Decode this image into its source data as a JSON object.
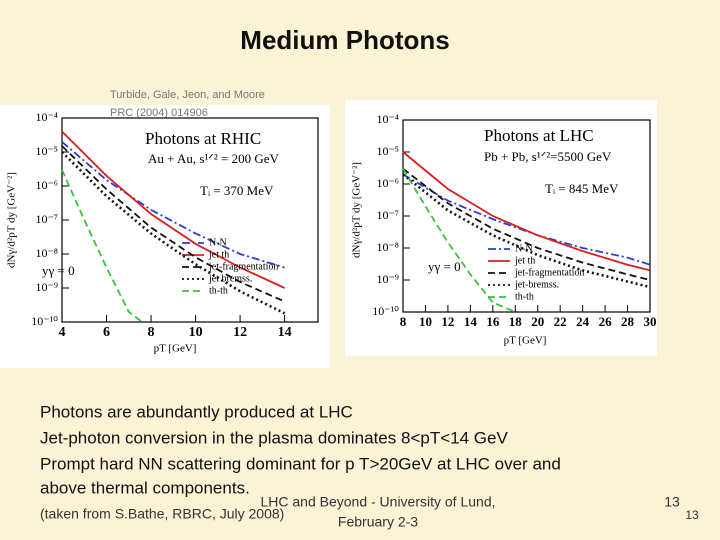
{
  "title": "Medium Photons",
  "citation": [
    "Turbide, Gale, Jeon, and Moore",
    "PRC (2004) 014906"
  ],
  "chart_data": [
    {
      "type": "line",
      "title": "Photons at RHIC",
      "annotations": [
        "Au + Au, s¹ᐟ² = 200 GeV",
        "Tᵢ = 370 MeV",
        "yγ = 0"
      ],
      "x_label": "pT [GeV]",
      "y_label": "dNγ/d²pT dy [GeV⁻²]",
      "xlim": [
        4,
        15.5
      ],
      "xticks": [
        4,
        6,
        8,
        10,
        12,
        14
      ],
      "ylim": [
        1e-10,
        0.0001
      ],
      "log_y": true,
      "yticks": [
        {
          "value": 0.0001,
          "label": "10⁻⁴"
        },
        {
          "value": 1e-05,
          "label": "10⁻⁵"
        },
        {
          "value": 1e-06,
          "label": "10⁻⁶"
        },
        {
          "value": 1e-07,
          "label": "10⁻⁷"
        },
        {
          "value": 1e-08,
          "label": "10⁻⁸"
        },
        {
          "value": 1e-09,
          "label": "10⁻⁹"
        },
        {
          "value": 1e-10,
          "label": "10⁻¹⁰"
        }
      ],
      "legend": "lower right",
      "series": [
        {
          "name": "N-N",
          "color": "#2a3fd0",
          "dash": "dashdot",
          "x": [
            4,
            6,
            8,
            10,
            12,
            14
          ],
          "values": [
            2e-05,
            1.5e-06,
            2e-07,
            4e-08,
            1e-08,
            4e-09
          ]
        },
        {
          "name": "jet th",
          "color": "#d62020",
          "dash": "solid",
          "x": [
            4,
            6,
            8,
            10,
            12,
            14
          ],
          "values": [
            4e-05,
            2e-06,
            1.5e-07,
            2e-08,
            4e-09,
            1e-09
          ]
        },
        {
          "name": "jet-fragmentation",
          "color": "#111111",
          "dash": "dashed",
          "x": [
            4,
            6,
            8,
            10,
            12,
            14
          ],
          "values": [
            1.5e-05,
            8e-07,
            6e-08,
            8e-09,
            1.5e-09,
            4e-10
          ]
        },
        {
          "name": "jet bremss.",
          "color": "#111111",
          "dash": "dotted",
          "x": [
            4,
            6,
            8,
            10,
            12,
            14
          ],
          "values": [
            1e-05,
            5e-07,
            4e-08,
            5e-09,
            8e-10,
            1.8e-10
          ]
        },
        {
          "name": "th-th",
          "color": "#3cc040",
          "dash": "dashed",
          "x": [
            4,
            5,
            6,
            7,
            7.6
          ],
          "values": [
            3e-06,
            1e-07,
            4e-09,
            2e-10,
            1e-10
          ]
        }
      ]
    },
    {
      "type": "line",
      "title": "Photons at LHC",
      "annotations": [
        "Pb + Pb, s¹ᐟ²=5500 GeV",
        "Tᵢ = 845 MeV",
        "yγ = 0"
      ],
      "x_label": "pT [GeV]",
      "y_label": "dNγ/d²pT dy [GeV⁻²]",
      "xlim": [
        8,
        30
      ],
      "xticks": [
        8,
        10,
        12,
        14,
        16,
        18,
        20,
        22,
        24,
        26,
        28,
        30
      ],
      "ylim": [
        1e-10,
        0.0001
      ],
      "log_y": true,
      "yticks": [
        {
          "value": 0.0001,
          "label": "10⁻⁴"
        },
        {
          "value": 1e-05,
          "label": "10⁻⁵"
        },
        {
          "value": 1e-06,
          "label": "10⁻⁶"
        },
        {
          "value": 1e-07,
          "label": "10⁻⁷"
        },
        {
          "value": 1e-08,
          "label": "10⁻⁸"
        },
        {
          "value": 1e-09,
          "label": "10⁻⁹"
        },
        {
          "value": 1e-10,
          "label": "10⁻¹⁰"
        }
      ],
      "legend": "lower right",
      "series": [
        {
          "name": "N-N",
          "color": "#2a3fd0",
          "dash": "dashdot",
          "x": [
            8,
            12,
            16,
            20,
            24,
            28,
            30
          ],
          "values": [
            2e-06,
            3e-07,
            8e-08,
            2.5e-08,
            1e-08,
            5e-09,
            3e-09
          ]
        },
        {
          "name": "jet th",
          "color": "#d62020",
          "dash": "solid",
          "x": [
            8,
            12,
            16,
            20,
            24,
            28,
            30
          ],
          "values": [
            1e-05,
            7e-07,
            1e-07,
            2.5e-08,
            8e-09,
            3e-09,
            2e-09
          ]
        },
        {
          "name": "jet-fragmentation",
          "color": "#111111",
          "dash": "dashed",
          "x": [
            8,
            12,
            16,
            20,
            24,
            28,
            30
          ],
          "values": [
            3e-06,
            2.5e-07,
            4e-08,
            1e-08,
            3.5e-09,
            1.5e-09,
            1e-09
          ]
        },
        {
          "name": "jet-bremss.",
          "color": "#111111",
          "dash": "dotted",
          "x": [
            8,
            12,
            16,
            20,
            24,
            28,
            30
          ],
          "values": [
            2e-06,
            1.5e-07,
            2.5e-08,
            6e-09,
            2e-09,
            9e-10,
            6e-10
          ]
        },
        {
          "name": "th-th",
          "color": "#3cc040",
          "dash": "dashed",
          "x": [
            8,
            10,
            12,
            14,
            16,
            18
          ],
          "values": [
            3e-06,
            2e-07,
            1.5e-08,
            1.5e-09,
            2e-10,
            1e-10
          ]
        }
      ]
    }
  ],
  "bullets": [
    "Photons are abundantly produced at LHC",
    "Jet-photon conversion in the plasma dominates 8<pT<14 GeV",
    "Prompt hard NN scattering dominant for p T>20GeV at LHC over and",
    "above thermal components."
  ],
  "footer": {
    "source": "(taken from S.Bathe, RBRC, July 2008)",
    "event": "LHC and Beyond - University of Lund,",
    "date": "February 2-3",
    "page": "13",
    "page_repeat": "13"
  }
}
